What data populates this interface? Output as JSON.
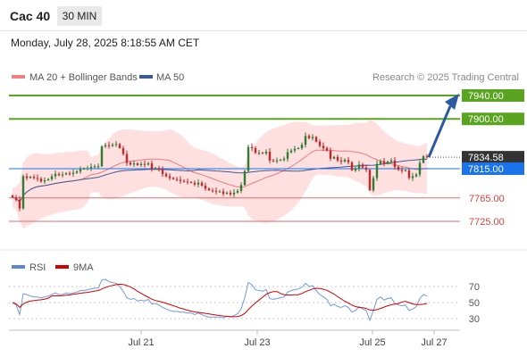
{
  "header": {
    "instrument": "Cac 40",
    "timeframe": "30 MIN"
  },
  "timestamp": "Monday, July 28, 2025 8:18:55 AM CET",
  "legend": {
    "bollinger": "MA 20 + Bollinger Bands",
    "ma50": "MA 50",
    "rsi": "RSI",
    "rsi_ma": "9MA"
  },
  "credit": "Research © 2025 Trading Central",
  "colors": {
    "up": "#2e7d32",
    "down": "#c62828",
    "bands": "#fdd5d5",
    "ma20": "#ef7b7b",
    "ma50": "#3c5a99",
    "green_levels": "#5aa51f",
    "red_levels": "#e36b6b",
    "current": "#333333",
    "support": "#1a73e8",
    "arrow": "#2c5aa0"
  },
  "chart_data": {
    "type": "candlestick",
    "x_ticks": [
      "Jul 21",
      "Jul 23",
      "Jul 25",
      "Jul 27"
    ],
    "levels": [
      {
        "value": 7940.0,
        "label": "7940.00",
        "kind": "resistance"
      },
      {
        "value": 7900.0,
        "label": "7900.00",
        "kind": "resistance"
      },
      {
        "value": 7834.58,
        "label": "7834.58",
        "kind": "current"
      },
      {
        "value": 7815.0,
        "label": "7815.00",
        "kind": "pivot"
      },
      {
        "value": 7765.0,
        "label": "7765.00",
        "kind": "support"
      },
      {
        "value": 7725.0,
        "label": "7725.00",
        "kind": "support"
      }
    ],
    "closes": [
      7766,
      7762,
      7747,
      7802,
      7799,
      7801,
      7799,
      7798,
      7793,
      7795,
      7797,
      7802,
      7806,
      7804,
      7805,
      7807,
      7806,
      7808,
      7810,
      7814,
      7815,
      7816,
      7818,
      7819,
      7819,
      7853,
      7855,
      7854,
      7856,
      7857,
      7850,
      7840,
      7825,
      7822,
      7824,
      7821,
      7823,
      7822,
      7824,
      7814,
      7816,
      7813,
      7806,
      7802,
      7799,
      7797,
      7796,
      7794,
      7793,
      7792,
      7791,
      7788,
      7791,
      7786,
      7781,
      7778,
      7777,
      7776,
      7776,
      7772,
      7774,
      7771,
      7774,
      7777,
      7787,
      7811,
      7852,
      7850,
      7842,
      7842,
      7841,
      7844,
      7829,
      7828,
      7829,
      7830,
      7832,
      7843,
      7846,
      7849,
      7850,
      7856,
      7871,
      7867,
      7869,
      7861,
      7854,
      7850,
      7846,
      7832,
      7835,
      7829,
      7827,
      7830,
      7826,
      7812,
      7815,
      7822,
      7817,
      7813,
      7778,
      7799,
      7823,
      7828,
      7823,
      7827,
      7829,
      7818,
      7813,
      7811,
      7812,
      7799,
      7802,
      7805,
      7825,
      7836,
      7834.58
    ],
    "rsi": [
      50,
      47,
      35,
      61,
      60,
      58,
      57,
      57,
      56,
      57,
      58,
      60,
      62,
      60,
      60,
      62,
      61,
      62,
      63,
      65,
      65,
      66,
      67,
      68,
      68,
      78,
      79,
      76,
      75,
      74,
      70,
      64,
      56,
      54,
      55,
      52,
      53,
      52,
      54,
      48,
      49,
      47,
      44,
      42,
      40,
      39,
      39,
      38,
      38,
      37,
      37,
      35,
      37,
      35,
      33,
      32,
      32,
      32,
      32,
      31,
      33,
      32,
      34,
      36,
      42,
      56,
      75,
      72,
      66,
      65,
      64,
      66,
      55,
      54,
      55,
      56,
      57,
      63,
      65,
      66,
      67,
      69,
      74,
      70,
      71,
      65,
      60,
      57,
      54,
      46,
      48,
      45,
      44,
      46,
      44,
      38,
      40,
      45,
      42,
      40,
      28,
      40,
      54,
      57,
      53,
      55,
      56,
      49,
      47,
      46,
      47,
      40,
      42,
      45,
      55,
      60,
      58
    ],
    "rsi_yticks": [
      70,
      50,
      30
    ],
    "rsi_range": [
      0,
      100
    ],
    "forecast": {
      "from": 7834.58,
      "to": 7940.0
    }
  }
}
